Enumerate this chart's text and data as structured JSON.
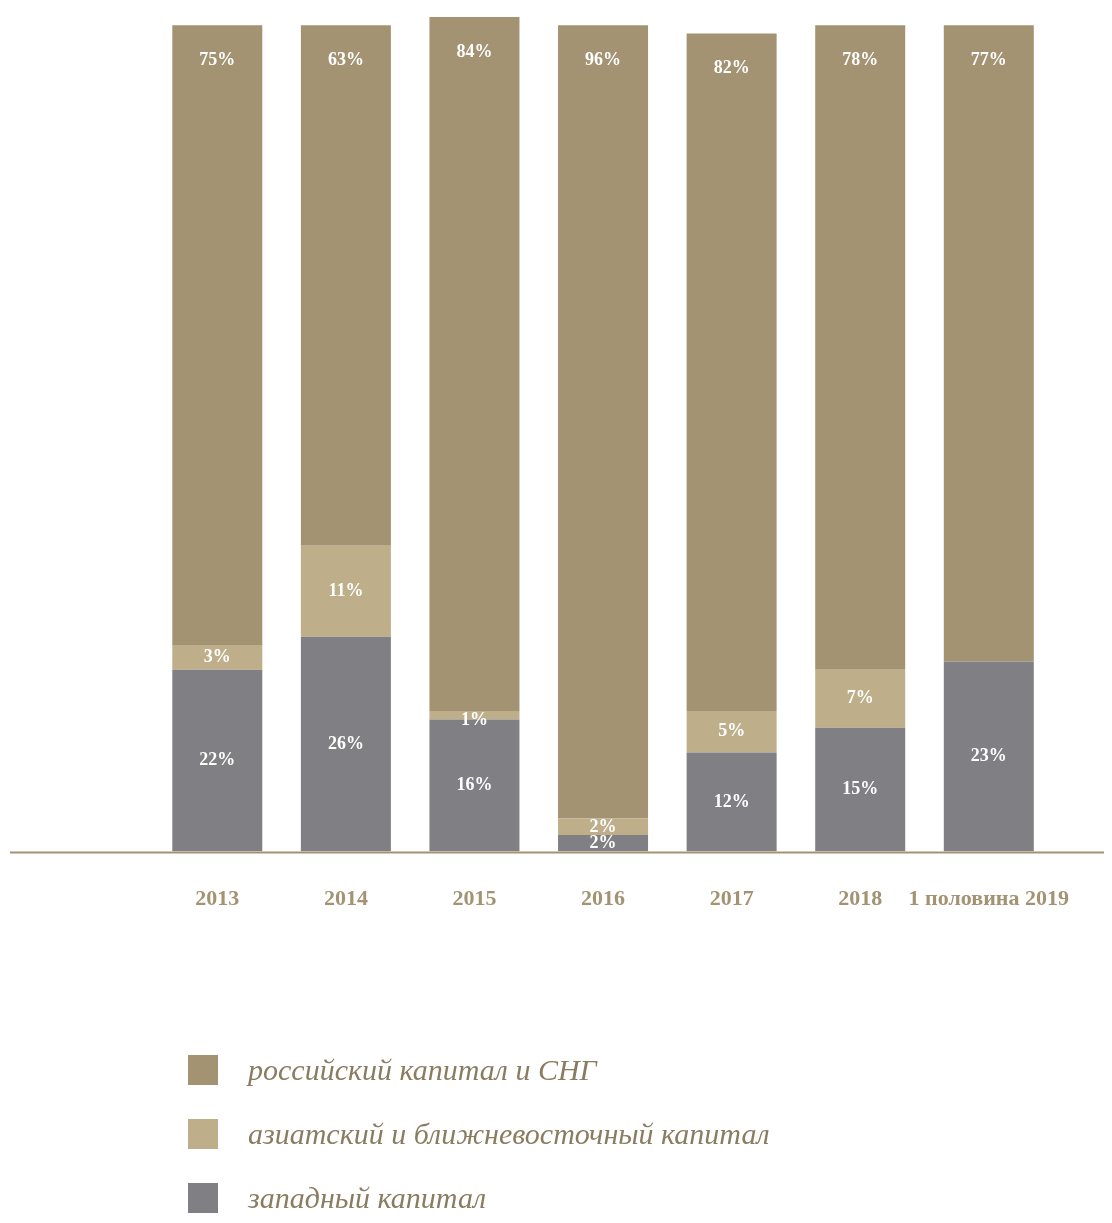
{
  "chart_data": {
    "type": "bar",
    "stacked": true,
    "grid": false,
    "legend": "bottom",
    "tick_labels": "x",
    "ylim": [
      0,
      101
    ],
    "categories": [
      "2013",
      "2014",
      "2015",
      "2016",
      "2017",
      "2018",
      "1 половина 2019"
    ],
    "series": [
      {
        "name": "западный капитал",
        "color": "#808084",
        "values": [
          22,
          26,
          16,
          2,
          12,
          15,
          23
        ],
        "value_labels": [
          "22%",
          "26%",
          "16%",
          "2%",
          "12%",
          "15%",
          "23%"
        ]
      },
      {
        "name": "азиатский и ближневосточный капитал",
        "color": "#beaf8a",
        "values": [
          3,
          11,
          1,
          2,
          5,
          7,
          null
        ],
        "value_labels": [
          "3%",
          "11%",
          "1%",
          "2%",
          "5%",
          "7%",
          null
        ]
      },
      {
        "name": "российский капитал и СНГ",
        "color": "#a39372",
        "values": [
          75,
          63,
          84,
          96,
          82,
          78,
          77
        ],
        "value_labels": [
          "75%",
          "63%",
          "84%",
          "96%",
          "82%",
          "78%",
          "77%"
        ]
      }
    ]
  }
}
